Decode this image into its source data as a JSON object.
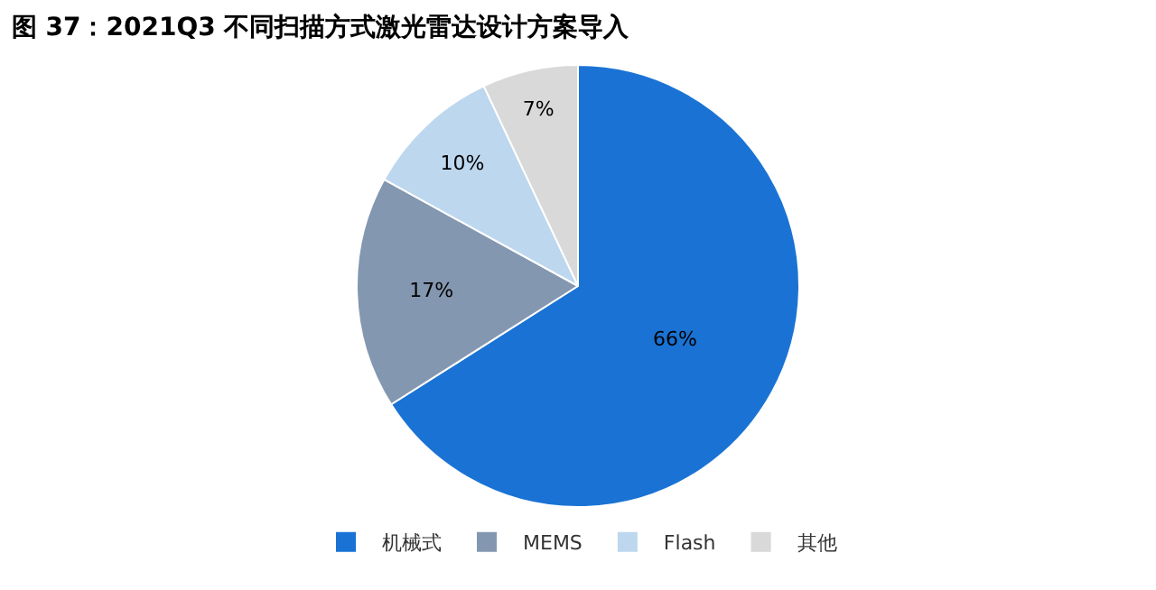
{
  "chart_data": {
    "type": "pie",
    "title": "图 37：2021Q3 不同扫描方式激光雷达设计方案导入",
    "categories": [
      "机械式",
      "MEMS",
      "Flash",
      "其他"
    ],
    "values": [
      66,
      17,
      10,
      7
    ],
    "colors": [
      "#1a73d4",
      "#8497b0",
      "#bdd7ee",
      "#d9d9d9"
    ],
    "value_labels": [
      "66%",
      "17%",
      "10%",
      "7%"
    ],
    "legend": "bottom"
  }
}
